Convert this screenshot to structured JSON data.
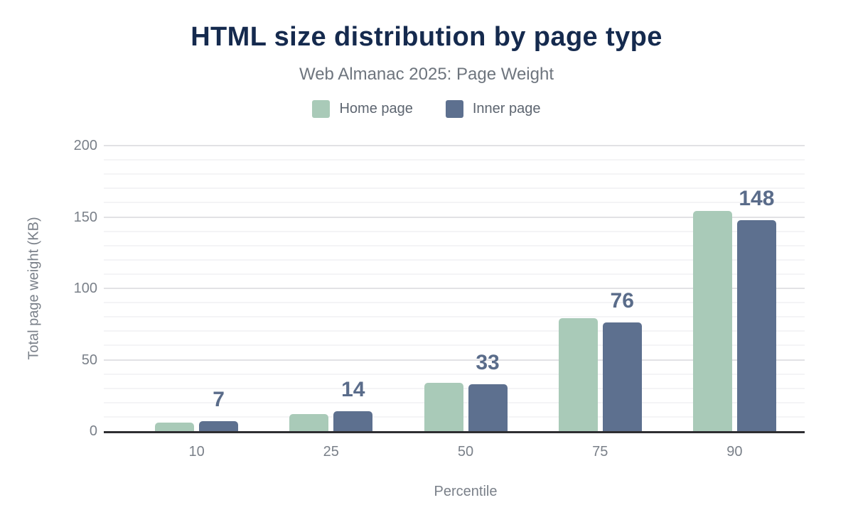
{
  "chart_data": {
    "type": "bar",
    "title": "HTML size distribution by page type",
    "subtitle": "Web Almanac 2025: Page Weight",
    "xlabel": "Percentile",
    "ylabel": "Total page weight (KB)",
    "categories": [
      "10",
      "25",
      "50",
      "75",
      "90"
    ],
    "series": [
      {
        "name": "Home page",
        "color": "#a9cab8",
        "values": [
          6,
          12,
          34,
          79,
          154
        ],
        "show_labels": false
      },
      {
        "name": "Inner page",
        "color": "#5d708f",
        "values": [
          7,
          14,
          33,
          76,
          148
        ],
        "show_labels": true
      }
    ],
    "data_labels": {
      "series": "Inner page",
      "values": [
        7,
        14,
        33,
        76,
        148
      ]
    },
    "ylim": [
      0,
      200
    ],
    "yticks": [
      0,
      50,
      100,
      150,
      200
    ],
    "minor_grid_step": 10,
    "grid": "horizontal-only",
    "legend_position": "top-center"
  },
  "colors": {
    "title": "#152a4e",
    "subtitle": "#6e757e",
    "legend-text": "#5d6570",
    "tick-label": "#7a8089",
    "value-label": "#5a6c8a",
    "grid-major": "#e2e2e5",
    "grid-minor": "#f4f4f6",
    "axis-line": "#2e2e32",
    "background": "#ffffff"
  }
}
